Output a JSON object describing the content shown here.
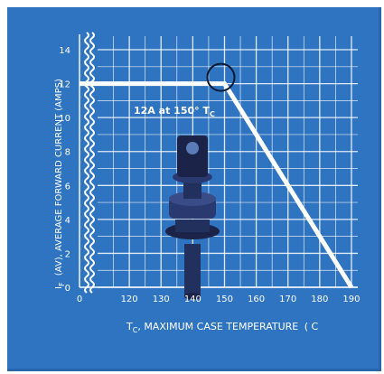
{
  "chart_data": {
    "type": "line",
    "xlabel": "T",
    "xlabel_sub": "C",
    "xlabel_rest": ", MAXIMUM CASE TEMPERATURE",
    "xlabel_unit": "( C",
    "ylabel": "I",
    "ylabel_sub": "F",
    "ylabel_rest": "(AV), AVERAGE FORWARD CURRENT (AMPS)",
    "x_ticks": [
      "0",
      "120",
      "130",
      "140",
      "150",
      "160",
      "170",
      "180",
      "190"
    ],
    "y_ticks": [
      "0",
      "2",
      "4",
      "6",
      "8",
      "10",
      "12",
      "14"
    ],
    "xlim": [
      110,
      192
    ],
    "ylim": [
      0,
      14.8
    ],
    "axis_break_x": true,
    "grid": true,
    "series": [
      {
        "x": [
          0,
          150,
          190
        ],
        "y": [
          12,
          12,
          0
        ]
      }
    ],
    "annotation": "12A at 150° T",
    "annotation_sub": "C",
    "highlight_point": [
      150,
      12
    ],
    "colors": {
      "background": "#2f74c0",
      "grid": "#ffffff",
      "line": "#ffffff",
      "device": "#22305e"
    }
  }
}
